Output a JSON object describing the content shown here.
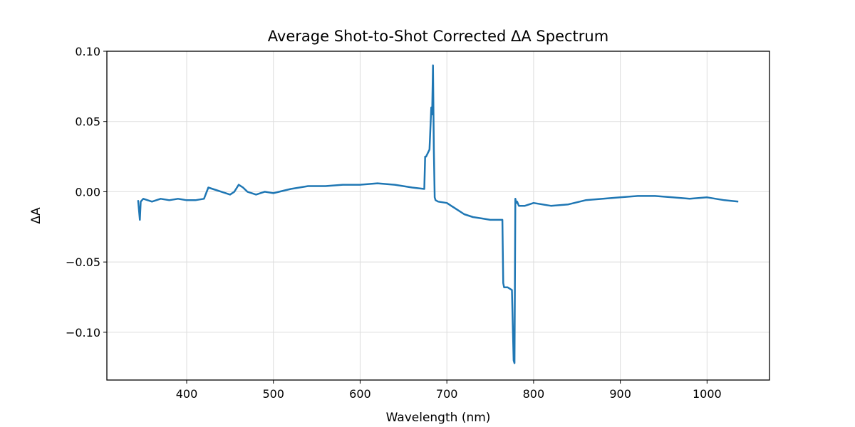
{
  "chart_data": {
    "type": "line",
    "title": "Average Shot-to-Shot Corrected ΔA Spectrum",
    "xlabel": "Wavelength (nm)",
    "ylabel": "ΔA",
    "xlim": [
      308,
      1072
    ],
    "ylim": [
      -0.134,
      0.1
    ],
    "xticks": [
      400,
      500,
      600,
      700,
      800,
      900,
      1000
    ],
    "yticks": [
      0.1,
      0.05,
      0.0,
      -0.05,
      -0.1
    ],
    "ytick_labels": [
      "0.10",
      "0.05",
      "0.00",
      "−0.05",
      "−0.10"
    ],
    "grid": true,
    "series": [
      {
        "color": "#1f77b4",
        "x": [
          344,
          346,
          347,
          350,
          360,
          370,
          380,
          390,
          400,
          410,
          420,
          425,
          430,
          440,
          450,
          455,
          460,
          465,
          470,
          480,
          490,
          500,
          520,
          540,
          560,
          580,
          600,
          620,
          640,
          660,
          674,
          675,
          676,
          680,
          682,
          683,
          684,
          685,
          686,
          687,
          690,
          700,
          710,
          720,
          730,
          740,
          750,
          760,
          764,
          765,
          766,
          770,
          775,
          777,
          778,
          779,
          780,
          781,
          783,
          790,
          800,
          820,
          840,
          860,
          880,
          900,
          920,
          940,
          960,
          980,
          1000,
          1020,
          1036
        ],
        "y": [
          -0.006,
          -0.02,
          -0.007,
          -0.005,
          -0.007,
          -0.005,
          -0.006,
          -0.005,
          -0.006,
          -0.006,
          -0.005,
          0.003,
          0.002,
          0.0,
          -0.002,
          0.0,
          0.005,
          0.003,
          0.0,
          -0.002,
          0.0,
          -0.001,
          0.002,
          0.004,
          0.004,
          0.005,
          0.005,
          0.006,
          0.005,
          0.003,
          0.002,
          0.025,
          0.025,
          0.03,
          0.06,
          0.055,
          0.09,
          0.03,
          -0.004,
          -0.006,
          -0.007,
          -0.008,
          -0.012,
          -0.016,
          -0.018,
          -0.019,
          -0.02,
          -0.02,
          -0.02,
          -0.065,
          -0.068,
          -0.068,
          -0.07,
          -0.12,
          -0.122,
          -0.005,
          -0.008,
          -0.007,
          -0.01,
          -0.01,
          -0.008,
          -0.01,
          -0.009,
          -0.006,
          -0.005,
          -0.004,
          -0.003,
          -0.003,
          -0.004,
          -0.005,
          -0.004,
          -0.006,
          -0.007
        ]
      }
    ]
  }
}
